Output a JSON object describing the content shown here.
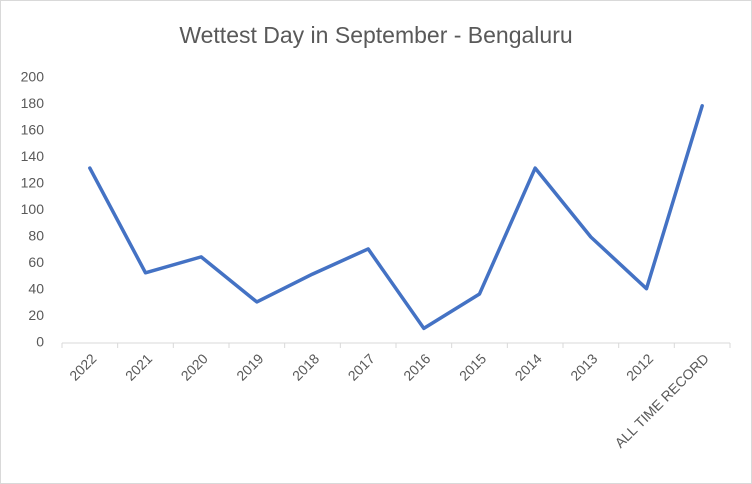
{
  "chart_data": {
    "type": "line",
    "title": "Wettest Day in September - Bengaluru",
    "categories": [
      "2022",
      "2021",
      "2020",
      "2019",
      "2018",
      "2017",
      "2016",
      "2015",
      "2014",
      "2013",
      "2012",
      "ALL TIME RECORD"
    ],
    "values": [
      132,
      53,
      65,
      31,
      52,
      71,
      11,
      37,
      132,
      80,
      41,
      179
    ],
    "color": "#4472c4",
    "ylim": [
      0,
      200
    ],
    "yticks": [
      0,
      20,
      40,
      60,
      80,
      100,
      120,
      140,
      160,
      180,
      200
    ],
    "grid": false
  }
}
